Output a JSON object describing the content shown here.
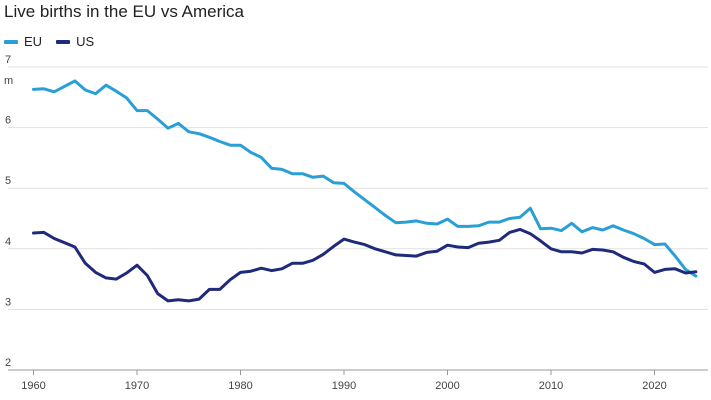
{
  "chart_data": {
    "type": "line",
    "title": "Live births in the EU vs America",
    "xlabel": "",
    "ylabel": "",
    "y_unit": "m",
    "xlim": [
      1959,
      2025
    ],
    "ylim": [
      2,
      7
    ],
    "x_ticks": [
      1960,
      1970,
      1980,
      1990,
      2000,
      2010,
      2020
    ],
    "y_ticks": [
      2,
      3,
      4,
      5,
      6,
      7
    ],
    "grid": "horizontal",
    "legend_position": "top-left",
    "series": [
      {
        "name": "EU",
        "color": "#2a9fd6",
        "points": [
          [
            1960,
            6.63
          ],
          [
            1961,
            6.64
          ],
          [
            1962,
            6.59
          ],
          [
            1963,
            6.68
          ],
          [
            1964,
            6.77
          ],
          [
            1965,
            6.62
          ],
          [
            1966,
            6.56
          ],
          [
            1967,
            6.7
          ],
          [
            1968,
            6.6
          ],
          [
            1969,
            6.49
          ],
          [
            1970,
            6.28
          ],
          [
            1971,
            6.28
          ],
          [
            1972,
            6.14
          ],
          [
            1973,
            5.99
          ],
          [
            1974,
            6.07
          ],
          [
            1975,
            5.93
          ],
          [
            1976,
            5.9
          ],
          [
            1977,
            5.84
          ],
          [
            1978,
            5.77
          ],
          [
            1979,
            5.71
          ],
          [
            1980,
            5.71
          ],
          [
            1981,
            5.59
          ],
          [
            1982,
            5.51
          ],
          [
            1983,
            5.33
          ],
          [
            1984,
            5.31
          ],
          [
            1985,
            5.24
          ],
          [
            1986,
            5.24
          ],
          [
            1987,
            5.18
          ],
          [
            1988,
            5.2
          ],
          [
            1989,
            5.09
          ],
          [
            1990,
            5.08
          ],
          [
            1991,
            4.94
          ],
          [
            1992,
            4.81
          ],
          [
            1993,
            4.68
          ],
          [
            1994,
            4.55
          ],
          [
            1995,
            4.43
          ],
          [
            1996,
            4.44
          ],
          [
            1997,
            4.46
          ],
          [
            1998,
            4.42
          ],
          [
            1999,
            4.41
          ],
          [
            2000,
            4.49
          ],
          [
            2001,
            4.37
          ],
          [
            2002,
            4.37
          ],
          [
            2003,
            4.38
          ],
          [
            2004,
            4.44
          ],
          [
            2005,
            4.44
          ],
          [
            2006,
            4.5
          ],
          [
            2007,
            4.52
          ],
          [
            2008,
            4.67
          ],
          [
            2009,
            4.33
          ],
          [
            2010,
            4.34
          ],
          [
            2011,
            4.3
          ],
          [
            2012,
            4.42
          ],
          [
            2013,
            4.28
          ],
          [
            2014,
            4.35
          ],
          [
            2015,
            4.31
          ],
          [
            2016,
            4.38
          ],
          [
            2017,
            4.31
          ],
          [
            2018,
            4.25
          ],
          [
            2019,
            4.17
          ],
          [
            2020,
            4.07
          ],
          [
            2021,
            4.08
          ],
          [
            2022,
            3.88
          ],
          [
            2023,
            3.66
          ],
          [
            2024,
            3.55
          ]
        ]
      },
      {
        "name": "US",
        "color": "#1f2b7a",
        "points": [
          [
            1960,
            4.26
          ],
          [
            1961,
            4.27
          ],
          [
            1962,
            4.17
          ],
          [
            1963,
            4.1
          ],
          [
            1964,
            4.03
          ],
          [
            1965,
            3.76
          ],
          [
            1966,
            3.61
          ],
          [
            1967,
            3.52
          ],
          [
            1968,
            3.5
          ],
          [
            1969,
            3.6
          ],
          [
            1970,
            3.73
          ],
          [
            1971,
            3.56
          ],
          [
            1972,
            3.26
          ],
          [
            1973,
            3.14
          ],
          [
            1974,
            3.16
          ],
          [
            1975,
            3.14
          ],
          [
            1976,
            3.17
          ],
          [
            1977,
            3.33
          ],
          [
            1978,
            3.33
          ],
          [
            1979,
            3.49
          ],
          [
            1980,
            3.61
          ],
          [
            1981,
            3.63
          ],
          [
            1982,
            3.68
          ],
          [
            1983,
            3.64
          ],
          [
            1984,
            3.67
          ],
          [
            1985,
            3.76
          ],
          [
            1986,
            3.76
          ],
          [
            1987,
            3.81
          ],
          [
            1988,
            3.91
          ],
          [
            1989,
            4.04
          ],
          [
            1990,
            4.16
          ],
          [
            1991,
            4.11
          ],
          [
            1992,
            4.07
          ],
          [
            1993,
            4.0
          ],
          [
            1994,
            3.95
          ],
          [
            1995,
            3.9
          ],
          [
            1996,
            3.89
          ],
          [
            1997,
            3.88
          ],
          [
            1998,
            3.94
          ],
          [
            1999,
            3.96
          ],
          [
            2000,
            4.06
          ],
          [
            2001,
            4.03
          ],
          [
            2002,
            4.02
          ],
          [
            2003,
            4.09
          ],
          [
            2004,
            4.11
          ],
          [
            2005,
            4.14
          ],
          [
            2006,
            4.27
          ],
          [
            2007,
            4.32
          ],
          [
            2008,
            4.25
          ],
          [
            2009,
            4.13
          ],
          [
            2010,
            4.0
          ],
          [
            2011,
            3.95
          ],
          [
            2012,
            3.95
          ],
          [
            2013,
            3.93
          ],
          [
            2014,
            3.99
          ],
          [
            2015,
            3.98
          ],
          [
            2016,
            3.95
          ],
          [
            2017,
            3.86
          ],
          [
            2018,
            3.79
          ],
          [
            2019,
            3.75
          ],
          [
            2020,
            3.61
          ],
          [
            2021,
            3.66
          ],
          [
            2022,
            3.67
          ],
          [
            2023,
            3.6
          ],
          [
            2024,
            3.62
          ]
        ]
      }
    ]
  }
}
